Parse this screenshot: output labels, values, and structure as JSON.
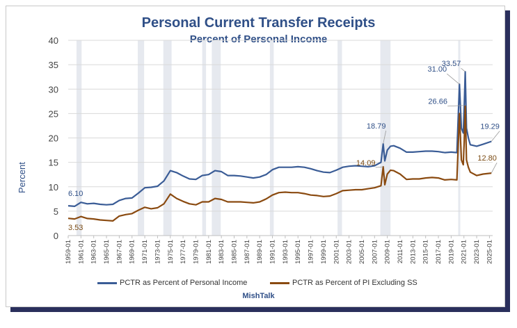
{
  "chart_data": {
    "type": "line",
    "title": "Personal Current Transfer Receipts",
    "subtitle": "Percent of Personal Income",
    "ylabel": "Percent",
    "xlabel": "",
    "ylim": [
      0,
      40
    ],
    "yticks": [
      0,
      5,
      10,
      15,
      20,
      25,
      30,
      35,
      40
    ],
    "xlim": [
      1959,
      2025.5
    ],
    "xtick_labels": [
      "1959-01",
      "1961-01",
      "1963-01",
      "1965-01",
      "1967-01",
      "1969-01",
      "1971-01",
      "1973-01",
      "1975-01",
      "1977-01",
      "1979-01",
      "1981-01",
      "1983-01",
      "1985-01",
      "1987-01",
      "1989-01",
      "1991-01",
      "1993-01",
      "1995-01",
      "1997-01",
      "1999-01",
      "2001-01",
      "2003-01",
      "2005-01",
      "2007-01",
      "2009-01",
      "2011-01",
      "2013-01",
      "2015-01",
      "2017-01",
      "2019-01",
      "2021-01",
      "2023-01",
      "2025-01"
    ],
    "recessions": [
      [
        1960.3,
        1961.1
      ],
      [
        1969.9,
        1970.9
      ],
      [
        1973.9,
        1975.2
      ],
      [
        1980.0,
        1980.6
      ],
      [
        1981.5,
        1982.9
      ],
      [
        1990.6,
        1991.2
      ],
      [
        2001.2,
        2001.9
      ],
      [
        2007.9,
        2009.5
      ],
      [
        2020.1,
        2020.4
      ]
    ],
    "series": [
      {
        "name": "PCTR as Percent of Personal Income",
        "color": "#3a5c96",
        "points": [
          [
            1959,
            6.1
          ],
          [
            1960,
            6.0
          ],
          [
            1961,
            6.8
          ],
          [
            1962,
            6.5
          ],
          [
            1963,
            6.6
          ],
          [
            1964,
            6.4
          ],
          [
            1965,
            6.3
          ],
          [
            1966,
            6.4
          ],
          [
            1967,
            7.2
          ],
          [
            1968,
            7.6
          ],
          [
            1969,
            7.7
          ],
          [
            1970,
            8.7
          ],
          [
            1971,
            9.8
          ],
          [
            1972,
            9.9
          ],
          [
            1973,
            10.1
          ],
          [
            1974,
            11.2
          ],
          [
            1975,
            13.3
          ],
          [
            1976,
            12.9
          ],
          [
            1977,
            12.2
          ],
          [
            1978,
            11.6
          ],
          [
            1979,
            11.5
          ],
          [
            1980,
            12.3
          ],
          [
            1981,
            12.5
          ],
          [
            1982,
            13.3
          ],
          [
            1983,
            13.1
          ],
          [
            1984,
            12.3
          ],
          [
            1985,
            12.3
          ],
          [
            1986,
            12.2
          ],
          [
            1987,
            12.0
          ],
          [
            1988,
            11.8
          ],
          [
            1989,
            12.0
          ],
          [
            1990,
            12.5
          ],
          [
            1991,
            13.5
          ],
          [
            1992,
            14.0
          ],
          [
            1993,
            14.0
          ],
          [
            1994,
            14.0
          ],
          [
            1995,
            14.1
          ],
          [
            1996,
            14.0
          ],
          [
            1997,
            13.7
          ],
          [
            1998,
            13.3
          ],
          [
            1999,
            13.0
          ],
          [
            2000,
            12.9
          ],
          [
            2001,
            13.4
          ],
          [
            2002,
            14.0
          ],
          [
            2003,
            14.2
          ],
          [
            2004,
            14.3
          ],
          [
            2005,
            14.2
          ],
          [
            2006,
            14.1
          ],
          [
            2007,
            14.3
          ],
          [
            2008,
            15.0
          ],
          [
            2008.35,
            18.79
          ],
          [
            2008.6,
            15.3
          ],
          [
            2009,
            17.5
          ],
          [
            2009.5,
            18.3
          ],
          [
            2010,
            18.4
          ],
          [
            2011,
            17.9
          ],
          [
            2012,
            17.1
          ],
          [
            2013,
            17.1
          ],
          [
            2014,
            17.2
          ],
          [
            2015,
            17.3
          ],
          [
            2016,
            17.3
          ],
          [
            2017,
            17.2
          ],
          [
            2018,
            17.0
          ],
          [
            2019,
            17.1
          ],
          [
            2019.9,
            17.0
          ],
          [
            2020.3,
            31.0
          ],
          [
            2020.6,
            22.0
          ],
          [
            2020.9,
            21.0
          ],
          [
            2021.05,
            26.66
          ],
          [
            2021.2,
            33.57
          ],
          [
            2021.4,
            22.0
          ],
          [
            2021.7,
            20.0
          ],
          [
            2022,
            18.6
          ],
          [
            2023,
            18.3
          ],
          [
            2024,
            18.7
          ],
          [
            2025.3,
            19.29
          ]
        ]
      },
      {
        "name": "PCTR as Percent of PI Excluding SS",
        "color": "#8a4a10",
        "points": [
          [
            1959,
            3.53
          ],
          [
            1960,
            3.4
          ],
          [
            1961,
            3.9
          ],
          [
            1962,
            3.5
          ],
          [
            1963,
            3.4
          ],
          [
            1964,
            3.2
          ],
          [
            1965,
            3.1
          ],
          [
            1966,
            3.0
          ],
          [
            1967,
            4.0
          ],
          [
            1968,
            4.3
          ],
          [
            1969,
            4.5
          ],
          [
            1970,
            5.2
          ],
          [
            1971,
            5.8
          ],
          [
            1972,
            5.5
          ],
          [
            1973,
            5.7
          ],
          [
            1974,
            6.5
          ],
          [
            1975,
            8.5
          ],
          [
            1976,
            7.6
          ],
          [
            1977,
            7.0
          ],
          [
            1978,
            6.5
          ],
          [
            1979,
            6.3
          ],
          [
            1980,
            6.9
          ],
          [
            1981,
            6.9
          ],
          [
            1982,
            7.6
          ],
          [
            1983,
            7.4
          ],
          [
            1984,
            6.9
          ],
          [
            1985,
            6.9
          ],
          [
            1986,
            6.9
          ],
          [
            1987,
            6.8
          ],
          [
            1988,
            6.7
          ],
          [
            1989,
            6.9
          ],
          [
            1990,
            7.5
          ],
          [
            1991,
            8.3
          ],
          [
            1992,
            8.8
          ],
          [
            1993,
            8.9
          ],
          [
            1994,
            8.8
          ],
          [
            1995,
            8.8
          ],
          [
            1996,
            8.6
          ],
          [
            1997,
            8.3
          ],
          [
            1998,
            8.2
          ],
          [
            1999,
            8.0
          ],
          [
            2000,
            8.1
          ],
          [
            2001,
            8.6
          ],
          [
            2002,
            9.2
          ],
          [
            2003,
            9.3
          ],
          [
            2004,
            9.4
          ],
          [
            2005,
            9.4
          ],
          [
            2006,
            9.6
          ],
          [
            2007,
            9.8
          ],
          [
            2008,
            10.2
          ],
          [
            2008.35,
            14.09
          ],
          [
            2008.6,
            10.4
          ],
          [
            2009,
            12.6
          ],
          [
            2009.5,
            13.4
          ],
          [
            2010,
            13.3
          ],
          [
            2011,
            12.6
          ],
          [
            2012,
            11.5
          ],
          [
            2013,
            11.6
          ],
          [
            2014,
            11.6
          ],
          [
            2015,
            11.8
          ],
          [
            2016,
            11.9
          ],
          [
            2017,
            11.8
          ],
          [
            2018,
            11.4
          ],
          [
            2019,
            11.5
          ],
          [
            2019.9,
            11.4
          ],
          [
            2020.3,
            25.0
          ],
          [
            2020.6,
            15.5
          ],
          [
            2020.9,
            14.5
          ],
          [
            2021.05,
            19.5
          ],
          [
            2021.2,
            26.5
          ],
          [
            2021.4,
            15.5
          ],
          [
            2021.7,
            14.0
          ],
          [
            2022,
            13.0
          ],
          [
            2023,
            12.3
          ],
          [
            2024,
            12.6
          ],
          [
            2025.3,
            12.8
          ]
        ]
      }
    ],
    "annotations": [
      {
        "label": "6.10",
        "x": 1959,
        "y": 6.1,
        "series": 0
      },
      {
        "label": "3.53",
        "x": 1959,
        "y": 3.53,
        "series": 1
      },
      {
        "label": "18.79",
        "x": 2008.35,
        "y": 18.79,
        "series": 0
      },
      {
        "label": "14.09",
        "x": 2008.35,
        "y": 14.09,
        "series": 1
      },
      {
        "label": "31.00",
        "x": 2020.3,
        "y": 31.0,
        "series": 0
      },
      {
        "label": "33.57",
        "x": 2021.2,
        "y": 33.57,
        "series": 0
      },
      {
        "label": "26.66",
        "x": 2021.05,
        "y": 26.66,
        "series": 0
      },
      {
        "label": "19.29",
        "x": 2025.3,
        "y": 19.29,
        "series": 0
      },
      {
        "label": "12.80",
        "x": 2025.3,
        "y": 12.8,
        "series": 1
      }
    ],
    "legend": [
      "PCTR as Percent of Personal Income",
      "PCTR as Percent of PI Excluding SS"
    ],
    "source": "MishTalk",
    "grid": true
  }
}
